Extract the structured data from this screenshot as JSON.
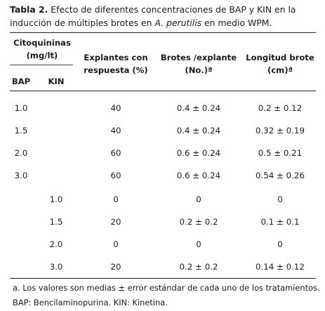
{
  "caption": {
    "label": "Tabla 2.",
    "text_before_species": " Efecto de diferentes concentraciones de BAP y KIN en la inducción de múltiples brotes en ",
    "species": "A. perutilis",
    "text_after_species": " en medio WPM."
  },
  "headers": {
    "citoquininas_line1": "Citoquininas",
    "citoquininas_line2": "(mg/lt)",
    "bap": "BAP",
    "kin": "KIN",
    "explantes_line1": "Explantes con",
    "explantes_line2": "respuesta (%)",
    "brotes_line1": "Brotes /explante",
    "brotes_line2": "(No.)ª",
    "longitud_line1": "Longitud brote",
    "longitud_line2": "(cm)ª"
  },
  "rows": [
    {
      "bap": "1.0",
      "kin": "",
      "explantes": "40",
      "brotes": "0.4 ± 0.24",
      "longitud": "0.2 ± 0.12"
    },
    {
      "bap": "1.5",
      "kin": "",
      "explantes": "40",
      "brotes": "0.4 ± 0.24",
      "longitud": "0.32 ± 0.19"
    },
    {
      "bap": "2.0",
      "kin": "",
      "explantes": "60",
      "brotes": "0.6 ± 0.24",
      "longitud": "0.5 ± 0.21"
    },
    {
      "bap": "3.0",
      "kin": "",
      "explantes": "60",
      "brotes": "0.6 ± 0.24",
      "longitud": "0.54 ± 0.26"
    },
    {
      "bap": "",
      "kin": "1.0",
      "explantes": "0",
      "brotes": "0",
      "longitud": "0"
    },
    {
      "bap": "",
      "kin": "1.5",
      "explantes": "20",
      "brotes": "0.2 ± 0.2",
      "longitud": "0.1 ± 0.1"
    },
    {
      "bap": "",
      "kin": "2.0",
      "explantes": "0",
      "brotes": "0",
      "longitud": "0"
    },
    {
      "bap": "",
      "kin": "3.0",
      "explantes": "20",
      "brotes": "0.2 ± 0.2",
      "longitud": "0.14 ± 0.12"
    }
  ],
  "footnotes": {
    "line1": "a. Los valores son medias ± error estándar de cada uno de los tratamientos.",
    "line2": "BAP: Bencilaminopurina.  KIN: Kinetina."
  }
}
